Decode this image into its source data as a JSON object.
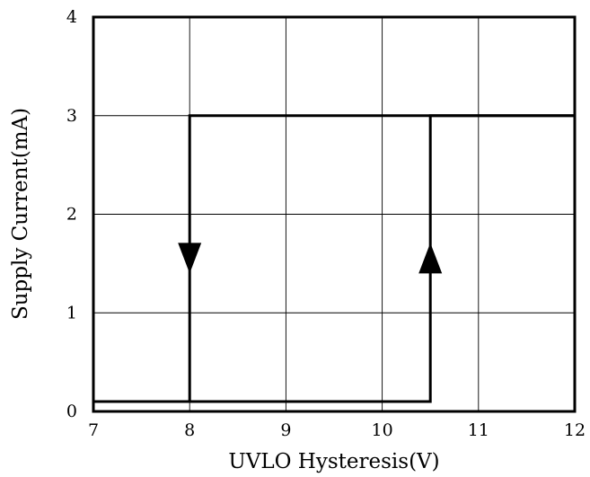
{
  "chart_data": {
    "type": "line",
    "xlabel": "UVLO  Hysteresis(V)",
    "ylabel": "Supply  Current(mA)",
    "xlim": [
      7,
      12
    ],
    "ylim": [
      0,
      4
    ],
    "x_ticks": [
      "7",
      "8",
      "9",
      "10",
      "11",
      "12"
    ],
    "y_ticks": [
      "0",
      "1",
      "2",
      "3",
      "4"
    ],
    "grid": true,
    "series": [
      {
        "direction": "rising",
        "x": [
          7,
          10.5,
          10.5,
          12
        ],
        "y": [
          0.1,
          0.1,
          3,
          3
        ],
        "arrow": {
          "x": 10.5,
          "y": 1.4,
          "orientation": "up"
        }
      },
      {
        "direction": "falling",
        "x": [
          12,
          8,
          8,
          7
        ],
        "y": [
          3,
          3,
          0.1,
          0.1
        ],
        "arrow": {
          "x": 8,
          "y": 1.4,
          "orientation": "down"
        }
      }
    ]
  }
}
